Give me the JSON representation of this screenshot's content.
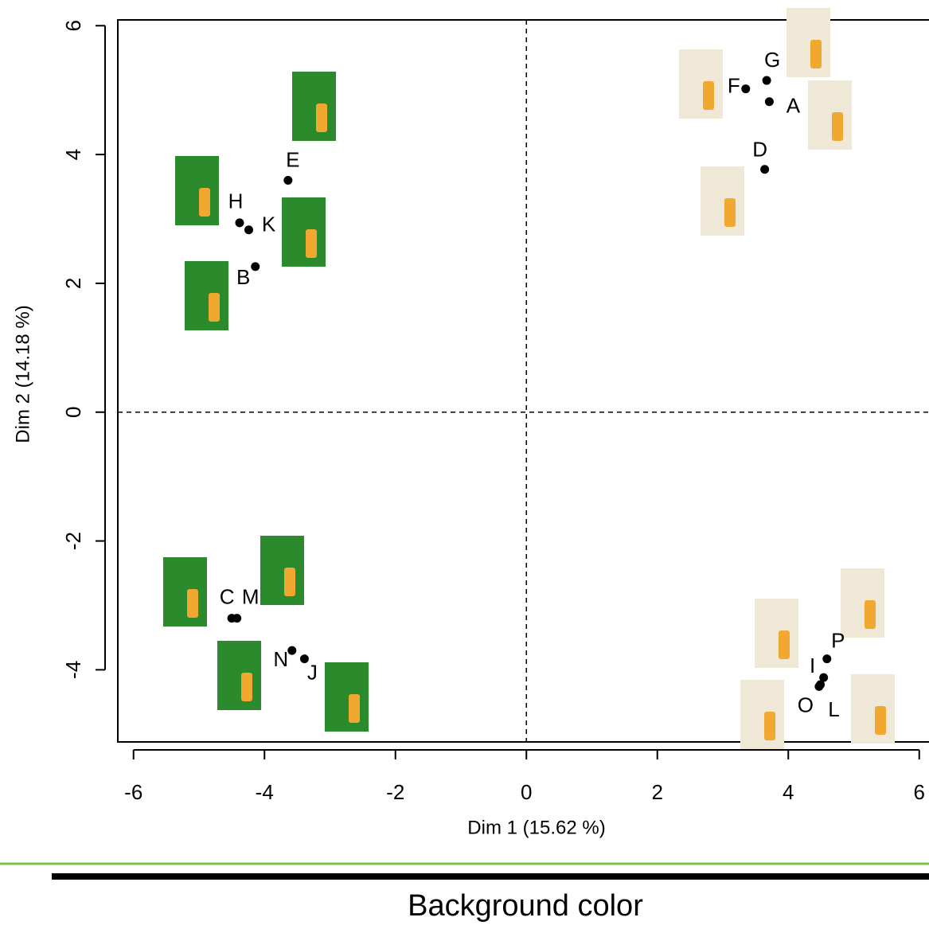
{
  "chart_data": {
    "type": "scatter",
    "xlabel": "Dim 1 (15.62 %)",
    "ylabel": "Dim 2 (14.18 %)",
    "labels": [
      "G",
      "F",
      "A",
      "D",
      "E",
      "H",
      "K",
      "B",
      "C",
      "M",
      "N",
      "J",
      "P",
      "I",
      "O",
      "L"
    ],
    "x": [
      3.67,
      3.35,
      3.71,
      3.64,
      -3.64,
      -4.38,
      -4.24,
      -4.14,
      -4.5,
      -4.42,
      -3.58,
      -3.39,
      4.59,
      4.54,
      4.47,
      4.49
    ],
    "values": [
      5.15,
      5.02,
      4.82,
      3.77,
      3.6,
      2.94,
      2.83,
      2.26,
      -3.2,
      -3.2,
      -3.7,
      -3.83,
      -3.83,
      -4.12,
      -4.26,
      -4.23
    ],
    "color": "#000000",
    "xlim": [
      -6.24,
      6.15
    ],
    "ylim": [
      -5.12,
      6.09
    ],
    "xticks": [
      -6,
      -4,
      -2,
      0,
      2,
      4,
      6
    ],
    "yticks": [
      -4,
      -2,
      0,
      2,
      4,
      6
    ],
    "crosshair": [
      0,
      0
    ],
    "footer": "Background color"
  }
}
